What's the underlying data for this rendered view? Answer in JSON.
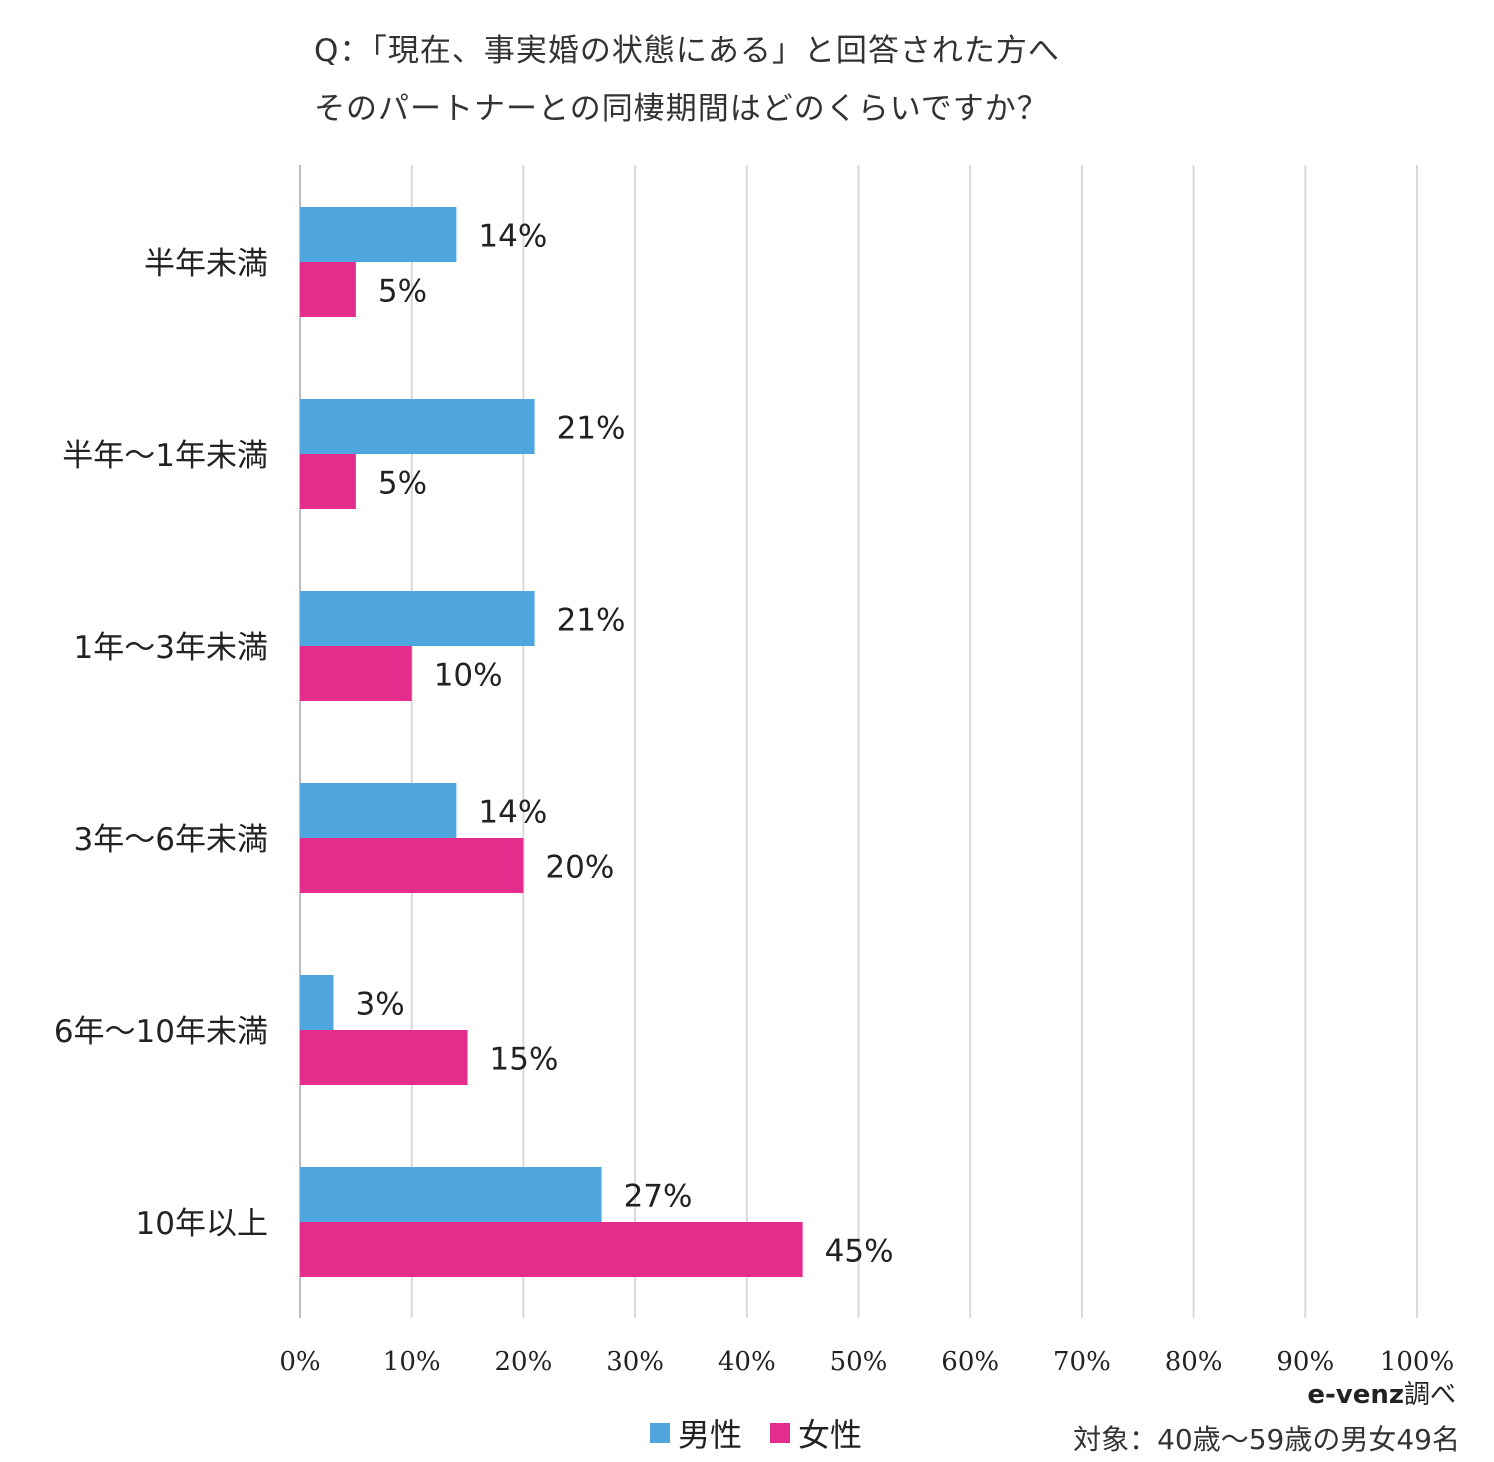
{
  "title": {
    "line1": "Q：「現在、事実婚の状態にある」と回答された方へ",
    "line2": "そのパートナーとの同棲期間はどのくらいですか？"
  },
  "colors": {
    "male": "#4fa6dc",
    "female": "#e42c8c",
    "grid": "#d9d9d9"
  },
  "chart_data": {
    "type": "bar",
    "orientation": "horizontal",
    "categories": [
      "半年未満",
      "半年～1年未満",
      "1年～3年未満",
      "3年～6年未満",
      "6年～10年未満",
      "10年以上"
    ],
    "series": [
      {
        "name": "男性",
        "values": [
          14,
          21,
          21,
          14,
          3,
          27
        ]
      },
      {
        "name": "女性",
        "values": [
          5,
          5,
          10,
          20,
          15,
          45
        ]
      }
    ],
    "data_labels": {
      "男性": [
        "14%",
        "21%",
        "21%",
        "14%",
        "3%",
        "27%"
      ],
      "女性": [
        "5%",
        "5%",
        "10%",
        "20%",
        "15%",
        "45%"
      ]
    },
    "xlim": [
      0,
      100
    ],
    "xticks": [
      0,
      10,
      20,
      30,
      40,
      50,
      60,
      70,
      80,
      90,
      100
    ],
    "xtick_labels": [
      "0%",
      "10%",
      "20%",
      "30%",
      "40%",
      "50%",
      "60%",
      "70%",
      "80%",
      "90%",
      "100%"
    ],
    "grid": true,
    "legend": "bottom"
  },
  "footer": {
    "credit_brand": "e-venz",
    "credit_suffix": "調べ",
    "target": "対象：40歳～59歳の男女49名"
  }
}
